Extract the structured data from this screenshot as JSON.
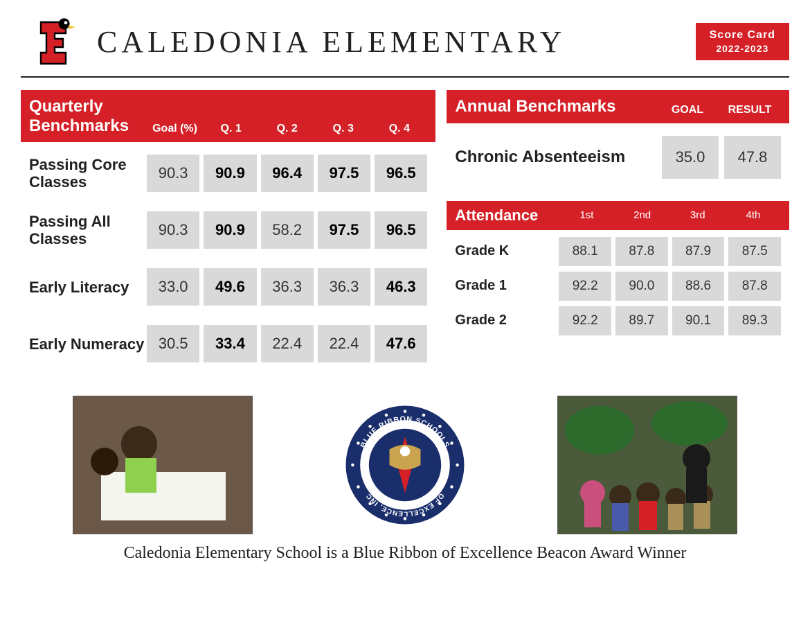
{
  "header": {
    "school_name": "CALEDONIA ELEMENTARY",
    "scorecard_label": "Score Card",
    "scorecard_year": "2022-2023"
  },
  "colors": {
    "brand_red": "#d52027",
    "cell_gray": "#d9d9d9",
    "text": "#222222"
  },
  "quarterly": {
    "title": "Quarterly Benchmarks",
    "columns": [
      "Goal (%)",
      "Q. 1",
      "Q. 2",
      "Q. 3",
      "Q. 4"
    ],
    "rows": [
      {
        "label": "Passing Core Classes",
        "values": [
          "90.3",
          "90.9",
          "96.4",
          "97.5",
          "96.5"
        ],
        "bold": [
          false,
          true,
          true,
          true,
          true
        ]
      },
      {
        "label": "Passing All Classes",
        "values": [
          "90.3",
          "90.9",
          "58.2",
          "97.5",
          "96.5"
        ],
        "bold": [
          false,
          true,
          false,
          true,
          true
        ]
      },
      {
        "label": "Early Literacy",
        "values": [
          "33.0",
          "49.6",
          "36.3",
          "36.3",
          "46.3"
        ],
        "bold": [
          false,
          true,
          false,
          false,
          true
        ]
      },
      {
        "label": "Early Numeracy",
        "values": [
          "30.5",
          "33.4",
          "22.4",
          "22.4",
          "47.6"
        ],
        "bold": [
          false,
          true,
          false,
          false,
          true
        ]
      }
    ]
  },
  "annual": {
    "title": "Annual Benchmarks",
    "columns": [
      "GOAL",
      "RESULT"
    ],
    "row": {
      "label": "Chronic Absenteeism",
      "goal": "35.0",
      "result": "47.8"
    }
  },
  "attendance": {
    "title": "Attendance",
    "columns": [
      "1st",
      "2nd",
      "3rd",
      "4th"
    ],
    "rows": [
      {
        "label": "Grade K",
        "values": [
          "88.1",
          "87.8",
          "87.9",
          "87.5"
        ]
      },
      {
        "label": "Grade 1",
        "values": [
          "92.2",
          "90.0",
          "88.6",
          "87.8"
        ]
      },
      {
        "label": "Grade 2",
        "values": [
          "92.2",
          "89.7",
          "90.1",
          "89.3"
        ]
      }
    ]
  },
  "footer": {
    "left_photo_alt": "Students at table",
    "right_photo_alt": "Class group photo",
    "seal_text_top": "BLUE RIBBON SCHOOLS",
    "seal_text_bottom": "OF EXCELLENCE, INC",
    "caption": "Caledonia Elementary School is a Blue Ribbon of Excellence Beacon Award Winner"
  }
}
